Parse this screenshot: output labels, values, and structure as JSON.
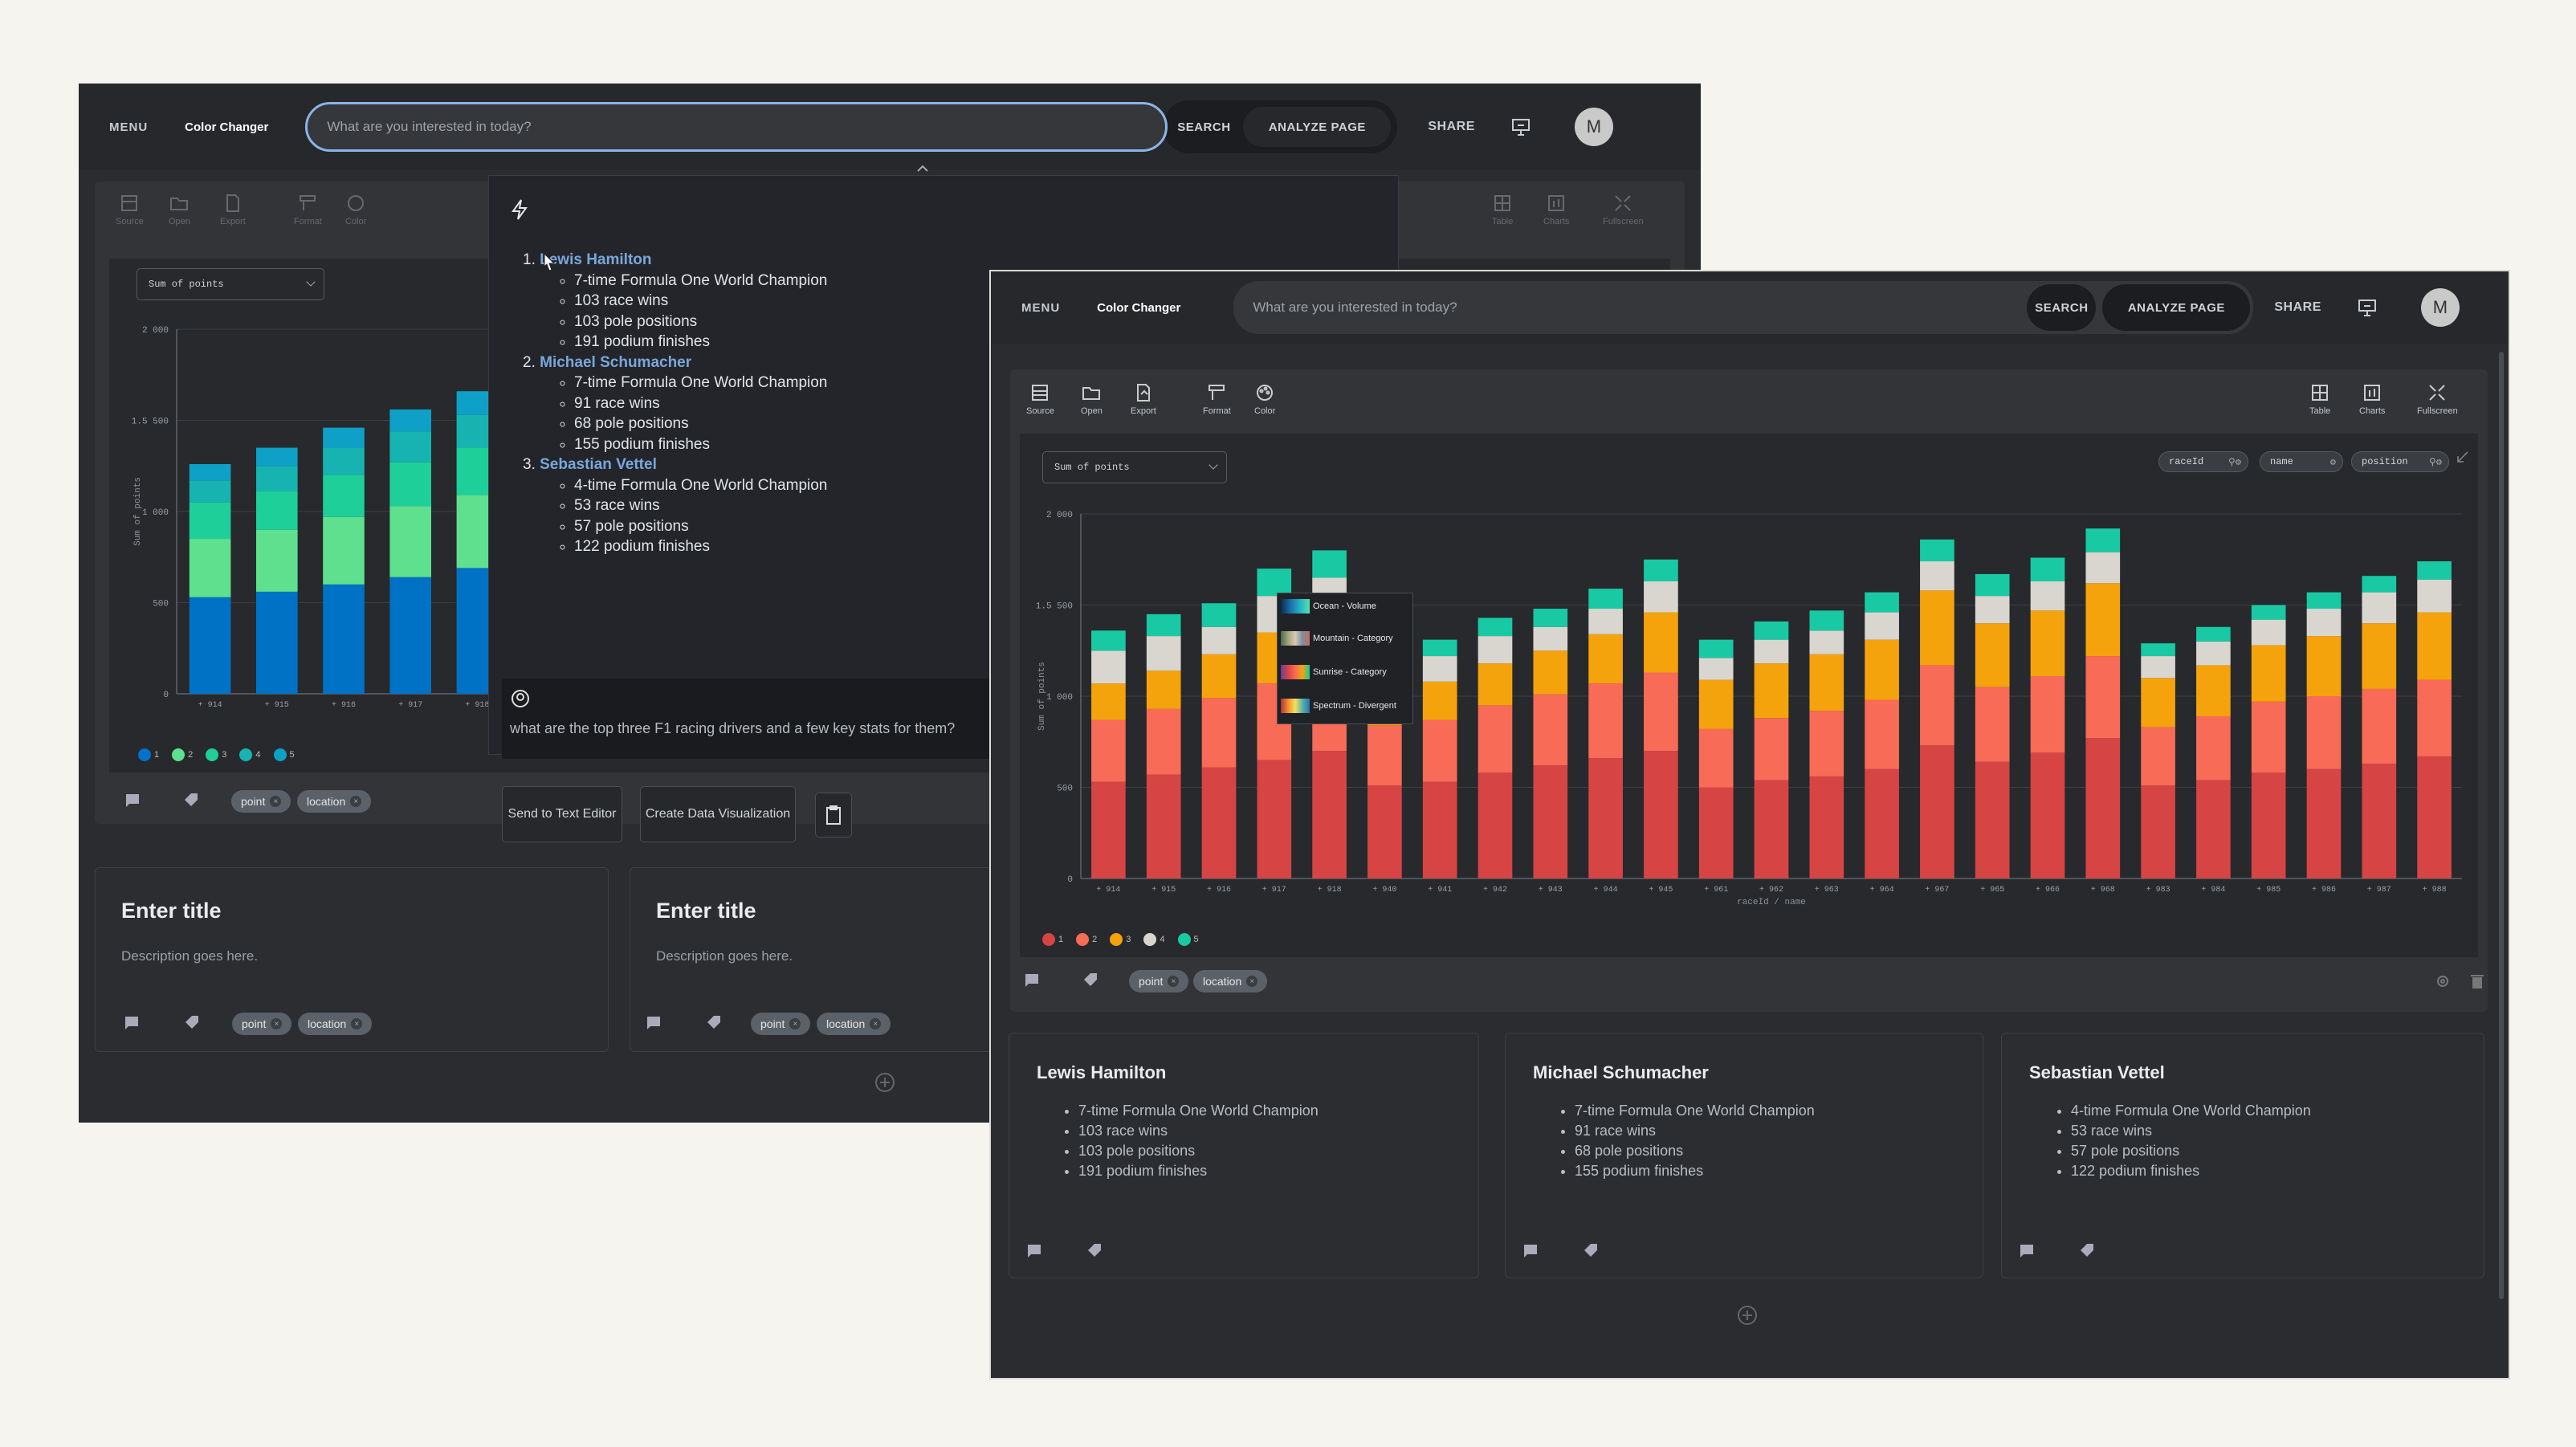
{
  "window1": {
    "menu_label": "MENU",
    "app_title": "Color Changer",
    "search_placeholder": "What are you interested in today?",
    "search_button": "SEARCH",
    "analyze_button": "ANALYZE PAGE",
    "share_label": "SHARE",
    "avatar_initial": "M",
    "toolbar": [
      "Source",
      "Open",
      "Export",
      "Format",
      "Color",
      "Table",
      "Charts",
      "Fullscreen"
    ],
    "measure_select": "Sum of points",
    "ylabel": "Sum of points",
    "y_ticks": [
      "2 000",
      "1 500",
      "1 000",
      "500",
      "0"
    ],
    "x_ticks": [
      "+ 914",
      "+ 915",
      "+ 916",
      "+ 917",
      "+ 918",
      "+ 9"
    ],
    "legend": [
      "1",
      "2",
      "3",
      "4",
      "5"
    ],
    "tags": [
      "point",
      "location"
    ],
    "cards": [
      {
        "title": "Enter title",
        "description": "Description goes here.",
        "tags": [
          "point",
          "location"
        ]
      },
      {
        "title": "Enter title",
        "description": "Description goes here.",
        "tags": [
          "point",
          "location"
        ]
      }
    ],
    "answer": {
      "drivers": [
        {
          "name": "Lewis Hamilton",
          "stats": [
            "7-time Formula One World Champion",
            "103 race wins",
            "103 pole positions",
            "191 podium finishes"
          ]
        },
        {
          "name": "Michael Schumacher",
          "stats": [
            "7-time Formula One World Champion",
            "91 race wins",
            "68 pole positions",
            "155 podium finishes"
          ]
        },
        {
          "name": "Sebastian Vettel",
          "stats": [
            "4-time Formula One World Champion",
            "53 race wins",
            "57 pole positions",
            "122 podium finishes"
          ]
        }
      ],
      "question": "what are the top three F1 racing drivers and a few key stats for them?",
      "send_button": "Send to Text Editor",
      "viz_button": "Create Data Visualization"
    },
    "colors": [
      "#0072c6",
      "#5ee08f",
      "#1ecf9a",
      "#17b3b0",
      "#0fa0c8"
    ]
  },
  "window2": {
    "menu_label": "MENU",
    "app_title": "Color Changer",
    "search_placeholder": "What are you interested in today?",
    "search_button": "SEARCH",
    "analyze_button": "ANALYZE PAGE",
    "share_label": "SHARE",
    "avatar_initial": "M",
    "toolbar_left": [
      "Source",
      "Open",
      "Export",
      "Format",
      "Color"
    ],
    "toolbar_right": [
      "Table",
      "Charts",
      "Fullscreen"
    ],
    "measure_select": "Sum of points",
    "filters": [
      "raceId",
      "name",
      "position"
    ],
    "palette": [
      "Ocean - Volume",
      "Mountain - Category",
      "Sunrise - Category",
      "Spectrum - Divergent"
    ],
    "tags": [
      "point",
      "location"
    ],
    "colors": [
      "#d64444",
      "#f76b57",
      "#f5a30d",
      "#d9d6cf",
      "#18c9a4"
    ],
    "cards": [
      {
        "title": "Lewis Hamilton",
        "stats": [
          "7-time Formula One World Champion",
          "103 race wins",
          "103 pole positions",
          "191 podium finishes"
        ]
      },
      {
        "title": "Michael Schumacher",
        "stats": [
          "7-time Formula One World Champion",
          "91 race wins",
          "68 pole positions",
          "155 podium finishes"
        ]
      },
      {
        "title": "Sebastian Vettel",
        "stats": [
          "4-time Formula One World Champion",
          "53 race wins",
          "57 pole positions",
          "122 podium finishes"
        ]
      }
    ]
  },
  "chart_data": [
    {
      "type": "bar",
      "stacked": true,
      "ylabel": "Sum of points",
      "ylim": [
        0,
        2000
      ],
      "categories": [
        "+ 914",
        "+ 915",
        "+ 916",
        "+ 917",
        "+ 918"
      ],
      "legend": "bottom-left",
      "series": [
        {
          "name": "1",
          "values": [
            530,
            560,
            600,
            640,
            690
          ]
        },
        {
          "name": "2",
          "values": [
            320,
            340,
            370,
            390,
            400
          ]
        },
        {
          "name": "3",
          "values": [
            200,
            210,
            230,
            240,
            260
          ]
        },
        {
          "name": "4",
          "values": [
            120,
            140,
            150,
            170,
            180
          ]
        },
        {
          "name": "5",
          "values": [
            90,
            100,
            110,
            120,
            130
          ]
        }
      ]
    },
    {
      "type": "bar",
      "stacked": true,
      "ylabel": "Sum of points",
      "xlabel": "raceId / name",
      "ylim": [
        0,
        2000
      ],
      "categories": [
        "+ 914",
        "+ 915",
        "+ 916",
        "+ 917",
        "+ 918",
        "+ 940",
        "+ 941",
        "+ 942",
        "+ 943",
        "+ 944",
        "+ 945",
        "+ 961",
        "+ 962",
        "+ 963",
        "+ 964",
        "+ 967",
        "+ 965",
        "+ 966",
        "+ 968",
        "+ 983",
        "+ 984",
        "+ 985",
        "+ 986",
        "+ 987",
        "+ 988"
      ],
      "legend": "bottom-left",
      "series": [
        {
          "name": "1",
          "values": [
            530,
            570,
            610,
            650,
            700,
            510,
            530,
            580,
            620,
            660,
            700,
            500,
            540,
            560,
            600,
            730,
            640,
            690,
            770,
            510,
            540,
            580,
            600,
            630,
            670
          ]
        },
        {
          "name": "2",
          "values": [
            340,
            360,
            380,
            420,
            420,
            330,
            340,
            370,
            390,
            410,
            430,
            320,
            340,
            360,
            380,
            440,
            410,
            420,
            450,
            320,
            350,
            390,
            400,
            410,
            420
          ]
        },
        {
          "name": "3",
          "values": [
            200,
            210,
            240,
            280,
            320,
            200,
            210,
            230,
            240,
            270,
            330,
            270,
            300,
            310,
            330,
            410,
            350,
            360,
            400,
            270,
            280,
            310,
            330,
            360,
            370
          ]
        },
        {
          "name": "4",
          "values": [
            180,
            190,
            150,
            200,
            210,
            130,
            140,
            150,
            130,
            140,
            170,
            120,
            130,
            130,
            150,
            160,
            150,
            160,
            170,
            120,
            130,
            140,
            150,
            170,
            180
          ]
        },
        {
          "name": "5",
          "values": [
            110,
            120,
            130,
            150,
            150,
            80,
            90,
            100,
            100,
            110,
            120,
            100,
            100,
            110,
            110,
            120,
            120,
            130,
            130,
            70,
            80,
            80,
            90,
            90,
            100
          ]
        }
      ]
    }
  ]
}
